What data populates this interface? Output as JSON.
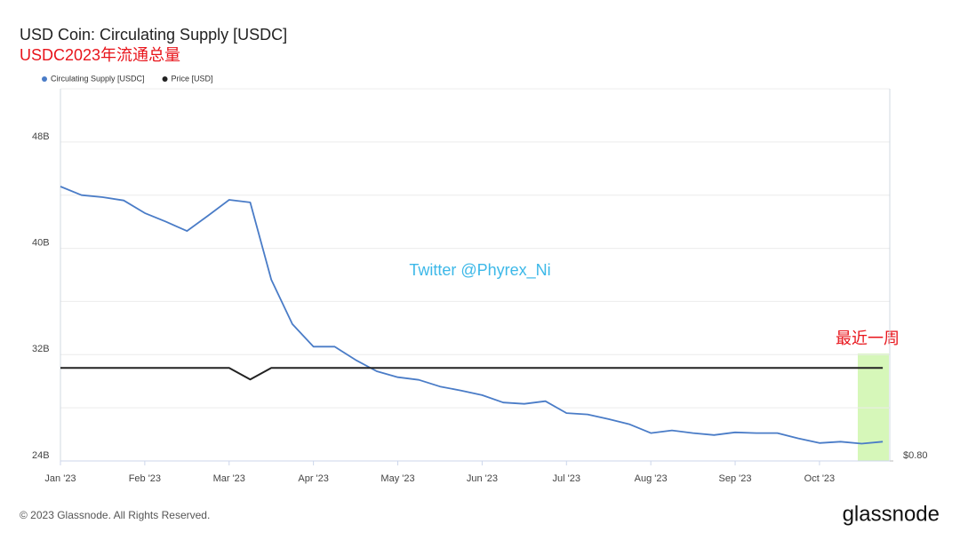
{
  "chart_data": {
    "type": "line",
    "title": "USD Coin: Circulating Supply [USDC]",
    "subtitle": "USDC2023年流通总量",
    "watermark": "Twitter @Phyrex_Ni",
    "highlight_label": "最近一周",
    "footer": "© 2023 Glassnode. All Rights Reserved.",
    "brand": "glassnode",
    "categories": [
      "Jan '23",
      null,
      null,
      null,
      "Feb '23",
      null,
      null,
      null,
      "Mar '23",
      null,
      null,
      null,
      "Apr '23",
      null,
      null,
      null,
      "May '23",
      null,
      null,
      null,
      "Jun '23",
      null,
      null,
      null,
      "Jul '23",
      null,
      null,
      null,
      "Aug '23",
      null,
      null,
      null,
      "Sep '23",
      null,
      null,
      null,
      "Oct '23",
      null,
      null,
      null
    ],
    "series": [
      {
        "name": "Circulating Supply [USDC]",
        "color": "#4a7cc7",
        "values": [
          44.65,
          44.0,
          43.85,
          43.6,
          42.65,
          42.0,
          41.3,
          42.45,
          43.65,
          43.45,
          37.64,
          34.3,
          32.6,
          32.6,
          31.6,
          30.75,
          30.3,
          30.1,
          29.6,
          29.3,
          28.95,
          28.4,
          28.3,
          28.5,
          27.6,
          27.5,
          27.15,
          26.75,
          26.1,
          26.3,
          26.1,
          25.95,
          26.15,
          26.1,
          26.1,
          25.7,
          25.35,
          25.45,
          25.3,
          25.45
        ]
      },
      {
        "name": "Price [USD]",
        "color": "#222222",
        "axis": "y2",
        "values": [
          1.0,
          1.0,
          1.0,
          1.0,
          1.0,
          1.0,
          1.0,
          1.0,
          1.0,
          0.975,
          1.0,
          1.0,
          1.0,
          1.0,
          1.0,
          1.0,
          1.0,
          1.0,
          1.0,
          1.0,
          1.0,
          1.0,
          1.0,
          1.0,
          1.0,
          1.0,
          1.0,
          1.0,
          1.0,
          1.0,
          1.0,
          1.0,
          1.0,
          1.0,
          1.0,
          1.0,
          1.0,
          1.0,
          1.0,
          1.0
        ]
      }
    ],
    "ylim": [
      24,
      52
    ],
    "yticks": [
      {
        "value": 24,
        "label": "24B"
      },
      {
        "value": 32,
        "label": "32B"
      },
      {
        "value": 40,
        "label": "40B"
      },
      {
        "value": 48,
        "label": "48B"
      }
    ],
    "minor_yticks": [
      28,
      36,
      44,
      52
    ],
    "y2lim": [
      0.8,
      1.6
    ],
    "y2ticks": [
      {
        "value": 0.8,
        "label": "$0.80"
      }
    ],
    "grid": true
  }
}
